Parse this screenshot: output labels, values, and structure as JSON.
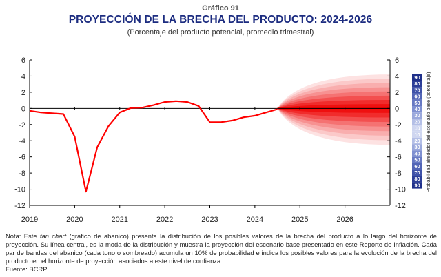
{
  "header": {
    "kicker": "Gráfico 91",
    "title": "PROYECCIÓN DE LA BRECHA DEL PRODUCTO: 2024-2026",
    "subtitle": "(Porcentaje del producto potencial, promedio trimestral)"
  },
  "notes": {
    "prefix": "Nota: Este ",
    "italic": "fan chart",
    "body": " (gráfico de abanico) presenta la distribución de los posibles valores de la brecha del producto a lo largo del horizonte de proyección. Su línea central, es la moda de la distribución y muestra la proyección del escenario base presentado en este Reporte de Inflación. Cada par de bandas del abanico (cada tono o sombreado) acumula un 10% de probabilidad e indica los posibles valores para la evolución de la brecha del producto en el horizonte de proyección asociados a este nivel de confianza.",
    "source": "Fuente: BCRP."
  },
  "colors": {
    "title": "#1c2c80",
    "line": "#ff0000",
    "fan_bands": [
      "#fde2e2",
      "#fbc9c9",
      "#f9aeae",
      "#f79191",
      "#f57272",
      "#f34f4f",
      "#f12c2c",
      "#ef1010"
    ],
    "prob_scale": [
      "#cfd6f0",
      "#b4bfe6",
      "#9aa8dc",
      "#7f90d1",
      "#6779c3",
      "#5265b6",
      "#3f52a8",
      "#2c3e98",
      "#1f308a"
    ]
  },
  "chart_data": {
    "type": "line",
    "xlabel": "",
    "ylabel": "",
    "ylim": [
      -12,
      6
    ],
    "yticks": [
      6,
      4,
      2,
      0,
      -2,
      -4,
      -6,
      -8,
      -10,
      -12
    ],
    "xticks": [
      "2019",
      "2020",
      "2021",
      "2022",
      "2023",
      "2024",
      "2025",
      "2026"
    ],
    "grid": false,
    "series": [
      {
        "values_x": [
          2019.0,
          2019.25,
          2019.5,
          2019.75,
          2020.0,
          2020.25,
          2020.5,
          2020.75,
          2021.0,
          2021.25,
          2021.5,
          2021.75,
          2022.0,
          2022.25,
          2022.5,
          2022.75,
          2023.0,
          2023.25,
          2023.5,
          2023.75,
          2024.0,
          2024.25,
          2024.5
        ],
        "values_y": [
          -0.3,
          -0.5,
          -0.6,
          -0.7,
          -3.5,
          -10.3,
          -4.8,
          -2.2,
          -0.5,
          0.05,
          0.1,
          0.4,
          0.8,
          0.9,
          0.8,
          0.3,
          -1.7,
          -1.7,
          -1.5,
          -1.1,
          -0.9,
          -0.5,
          -0.1
        ]
      }
    ],
    "projection": {
      "start_x": 2024.5,
      "end_x": 2027.0,
      "central_value": 0.0,
      "outer_band_end": [
        -4.5,
        4.2
      ]
    },
    "right_axis_label": "Probabilidad alrededor del escenario base (porcentaje)",
    "probability_scale": [
      "90",
      "80",
      "70",
      "60",
      "50",
      "40",
      "30",
      "20",
      "10",
      "10",
      "20",
      "30",
      "40",
      "50",
      "60",
      "70",
      "80",
      "90"
    ]
  }
}
